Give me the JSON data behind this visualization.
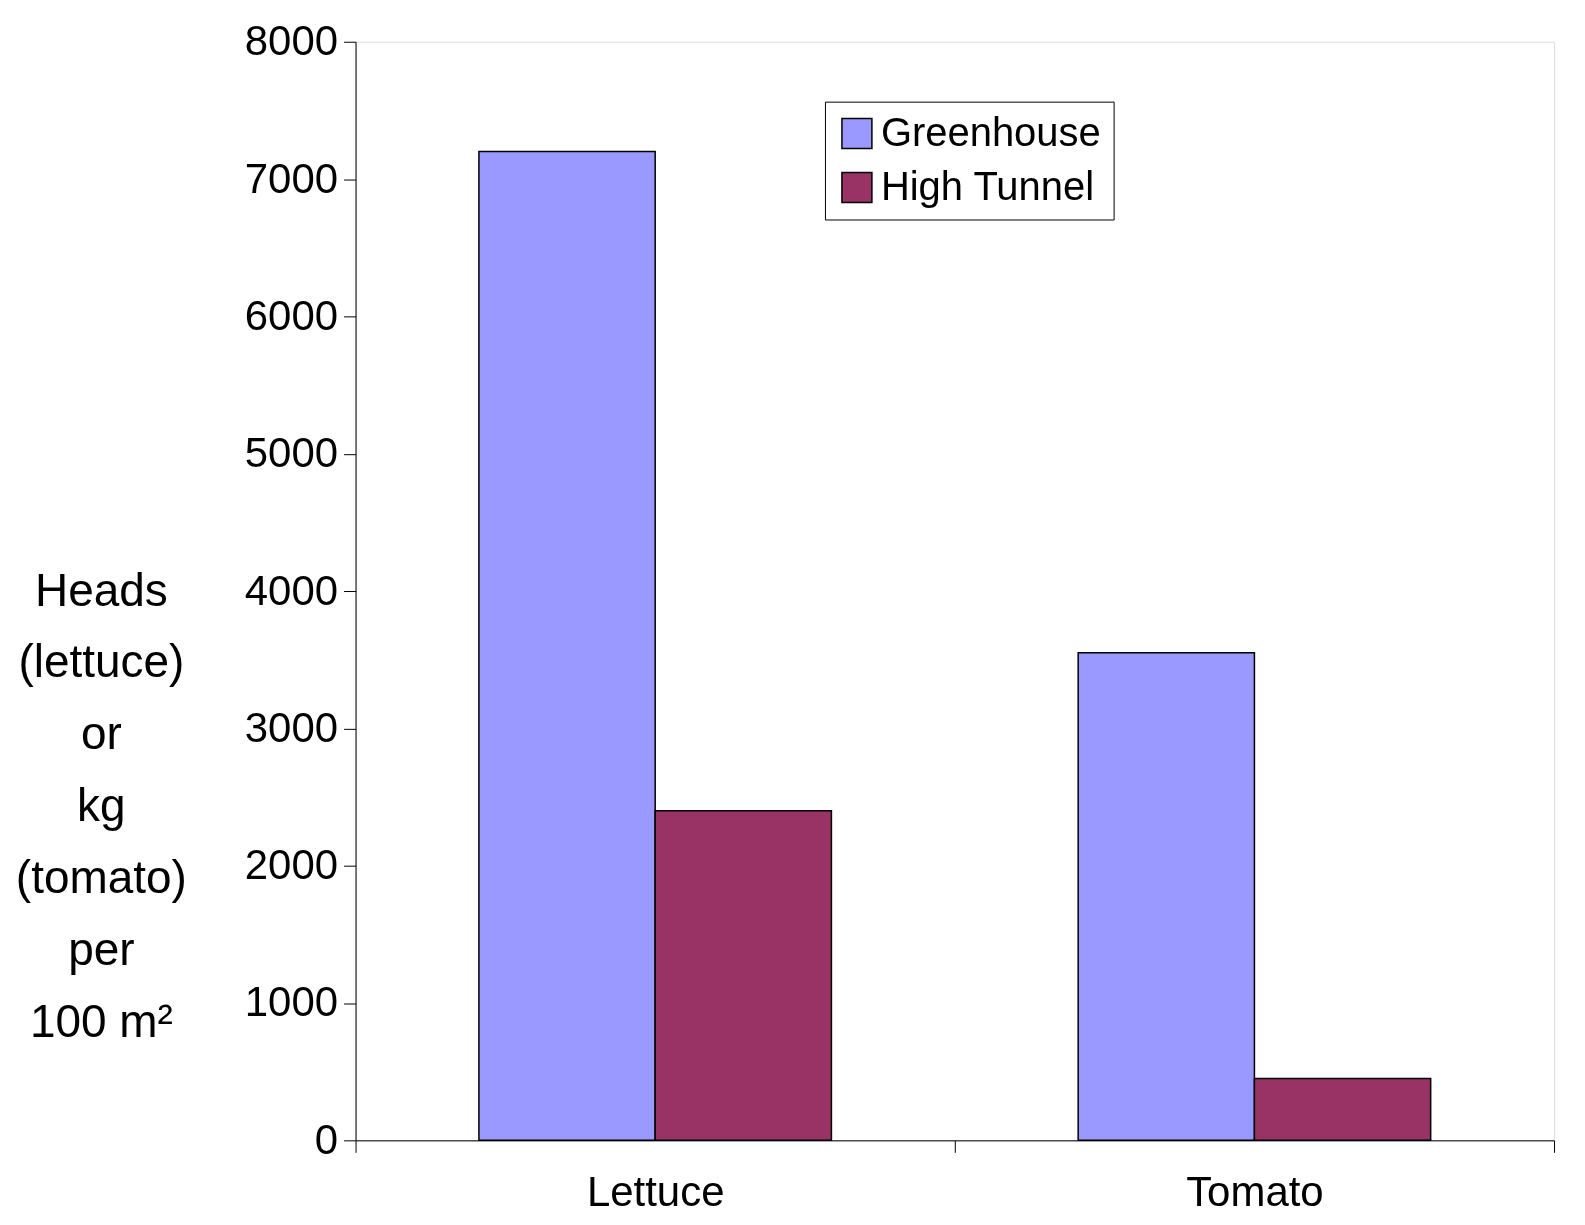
{
  "chart_data": {
    "type": "bar",
    "ylabel": "Heads (lettuce) or kg (tomato) per 100 m²",
    "categories": [
      "Lettuce",
      "Tomato"
    ],
    "series": [
      {
        "name": "Greenhouse",
        "color": "#9999ff",
        "values": [
          7200,
          3550
        ]
      },
      {
        "name": "High Tunnel",
        "color": "#993366",
        "values": [
          2400,
          450
        ]
      }
    ],
    "ylim": [
      0,
      8000
    ],
    "yticks": [
      0,
      1000,
      2000,
      3000,
      4000,
      5000,
      6000,
      7000,
      8000
    ],
    "grid": false,
    "legend": "top right"
  }
}
